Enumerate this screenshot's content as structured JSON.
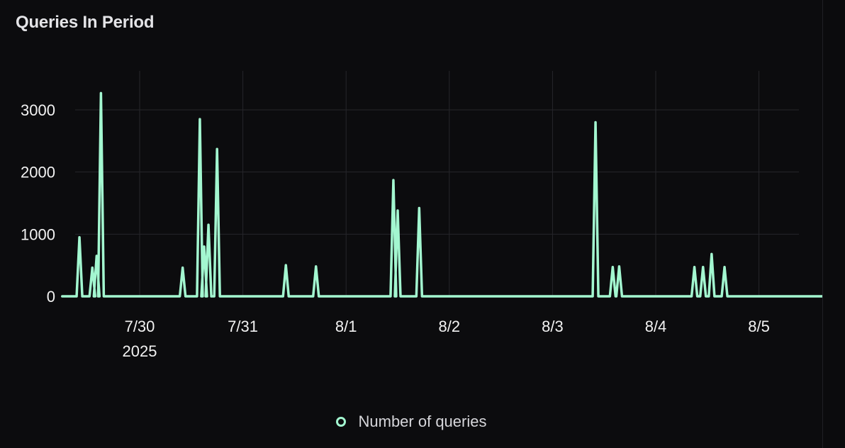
{
  "panel": {
    "title": "Queries In Period"
  },
  "chart_data": {
    "type": "line",
    "title": "Queries In Period",
    "xlabel": "",
    "ylabel": "",
    "ylim": [
      0,
      3500
    ],
    "y_ticks": [
      0,
      1000,
      2000,
      3000
    ],
    "x_range": [
      "2025-07-29T06:00",
      "2025-08-05T23:59"
    ],
    "x_tick_labels": [
      {
        "date": "2025-07-30",
        "label": "7/30",
        "sublabel": "2025"
      },
      {
        "date": "2025-07-31",
        "label": "7/31"
      },
      {
        "date": "2025-08-01",
        "label": "8/1"
      },
      {
        "date": "2025-08-02",
        "label": "8/2"
      },
      {
        "date": "2025-08-03",
        "label": "8/3"
      },
      {
        "date": "2025-08-04",
        "label": "8/4"
      },
      {
        "date": "2025-08-05",
        "label": "8/5"
      }
    ],
    "grid": true,
    "legend_position": "bottom-center",
    "colors": {
      "line": "#a3f7d0",
      "grid": "#26262b",
      "axis_text": "#f2f2f2",
      "background": "#0c0c0e"
    },
    "series": [
      {
        "name": "Number of queries",
        "points": [
          [
            "2025-07-29T10:00",
            950
          ],
          [
            "2025-07-29T13:00",
            460
          ],
          [
            "2025-07-29T14:00",
            650
          ],
          [
            "2025-07-29T15:00",
            3270
          ],
          [
            "2025-07-30T10:00",
            460
          ],
          [
            "2025-07-30T14:00",
            2850
          ],
          [
            "2025-07-30T15:00",
            800
          ],
          [
            "2025-07-30T16:00",
            1150
          ],
          [
            "2025-07-30T18:00",
            2370
          ],
          [
            "2025-07-31T10:00",
            500
          ],
          [
            "2025-07-31T17:00",
            480
          ],
          [
            "2025-08-01T11:00",
            1870
          ],
          [
            "2025-08-01T12:00",
            1380
          ],
          [
            "2025-08-01T17:00",
            1420
          ],
          [
            "2025-08-03T10:00",
            2800
          ],
          [
            "2025-08-03T14:00",
            470
          ],
          [
            "2025-08-03T15:30",
            480
          ],
          [
            "2025-08-04T09:00",
            470
          ],
          [
            "2025-08-04T11:00",
            470
          ],
          [
            "2025-08-04T13:00",
            680
          ],
          [
            "2025-08-04T16:00",
            470
          ]
        ]
      }
    ]
  }
}
